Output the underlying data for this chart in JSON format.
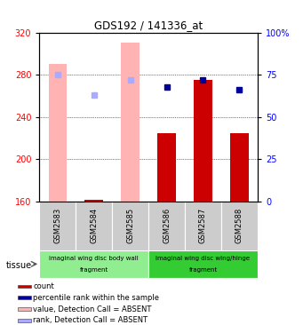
{
  "title": "GDS192 / 141336_at",
  "samples": [
    "GSM2583",
    "GSM2584",
    "GSM2585",
    "GSM2586",
    "GSM2587",
    "GSM2588"
  ],
  "ylim": [
    160,
    320
  ],
  "y2lim": [
    0,
    100
  ],
  "yticks": [
    160,
    200,
    240,
    280,
    320
  ],
  "y2ticks": [
    0,
    25,
    50,
    75,
    100
  ],
  "bar_values": [
    290,
    162,
    310,
    225,
    275,
    225
  ],
  "bar_absent": [
    true,
    false,
    true,
    false,
    false,
    false
  ],
  "rank_values": [
    75,
    63,
    72,
    68,
    72,
    66
  ],
  "rank_absent": [
    true,
    true,
    true,
    false,
    false,
    false
  ],
  "bar_color_present": "#cc0000",
  "bar_color_absent": "#ffb3b3",
  "rank_color_present": "#000099",
  "rank_color_absent": "#aaaaff",
  "bar_width": 0.5,
  "tissue_groups": [
    {
      "label": "imaginal wing disc body wall",
      "sublabel": "fragment",
      "samples": [
        0,
        1,
        2
      ],
      "color": "#90ee90"
    },
    {
      "label": "imaginal wing disc wing/hinge",
      "sublabel": "fragment",
      "samples": [
        3,
        4,
        5
      ],
      "color": "#33cc33"
    }
  ],
  "tissue_label": "tissue",
  "legend_items": [
    {
      "color": "#cc0000",
      "label": "count"
    },
    {
      "color": "#000099",
      "label": "percentile rank within the sample"
    },
    {
      "color": "#ffb3b3",
      "label": "value, Detection Call = ABSENT"
    },
    {
      "color": "#aaaaff",
      "label": "rank, Detection Call = ABSENT"
    }
  ]
}
